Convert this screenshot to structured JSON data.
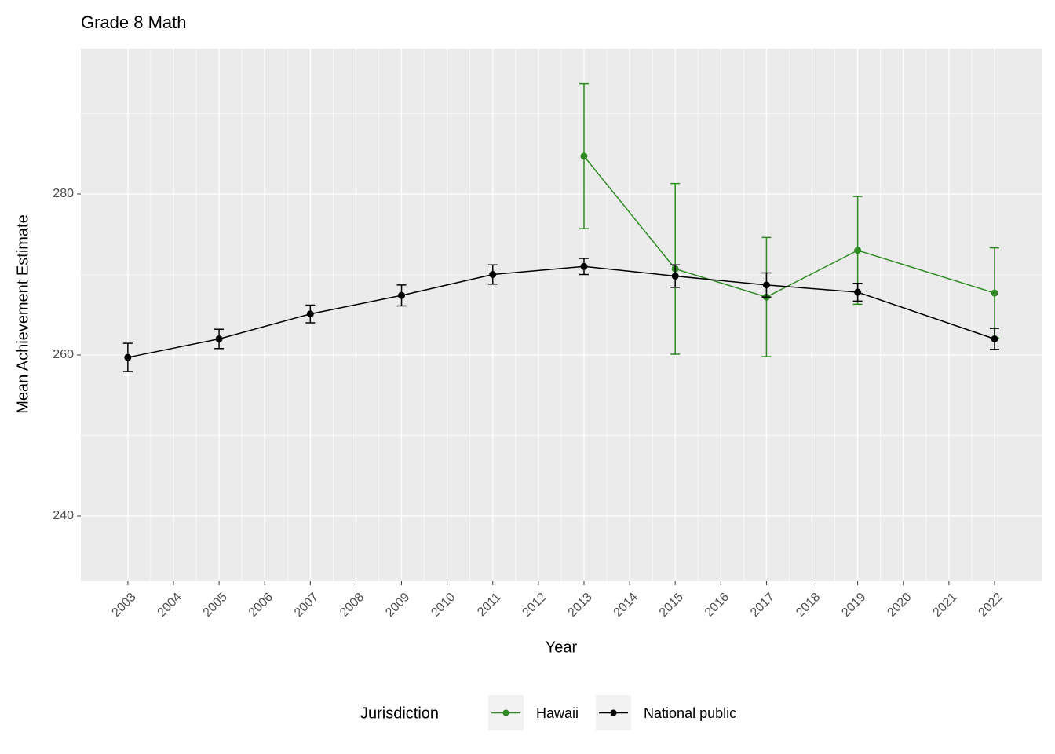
{
  "chart_data": {
    "type": "line",
    "title": "Grade 8 Math",
    "x_label": "Year",
    "y_label": "Mean Achievement Estimate",
    "legend_title": "Jurisdiction",
    "legend_position": "bottom",
    "grid": true,
    "x": [
      2003,
      2005,
      2007,
      2009,
      2011,
      2013,
      2015,
      2017,
      2019,
      2022
    ],
    "xlim": [
      2001.97,
      2023.05
    ],
    "xticks": [
      2003,
      2004,
      2005,
      2006,
      2007,
      2008,
      2009,
      2010,
      2011,
      2012,
      2013,
      2014,
      2015,
      2016,
      2017,
      2018,
      2019,
      2020,
      2021,
      2022
    ],
    "ylim": [
      231.9,
      298.05
    ],
    "yticks": [
      240,
      260,
      280
    ],
    "series": [
      {
        "name": "Hawaii",
        "color": "#2e8b22",
        "values": [
          null,
          null,
          null,
          null,
          null,
          284.7,
          270.7,
          267.2,
          273.0,
          267.7
        ],
        "errors": [
          null,
          null,
          null,
          null,
          null,
          9.0,
          10.6,
          7.4,
          6.7,
          5.6
        ]
      },
      {
        "name": "National public",
        "color": "#000000",
        "values": [
          259.7,
          262.0,
          265.1,
          267.4,
          270.0,
          271.0,
          269.8,
          268.7,
          267.8,
          262.0
        ],
        "errors": [
          1.75,
          1.2,
          1.1,
          1.3,
          1.2,
          1.0,
          1.4,
          1.5,
          1.1,
          1.3
        ]
      }
    ]
  }
}
